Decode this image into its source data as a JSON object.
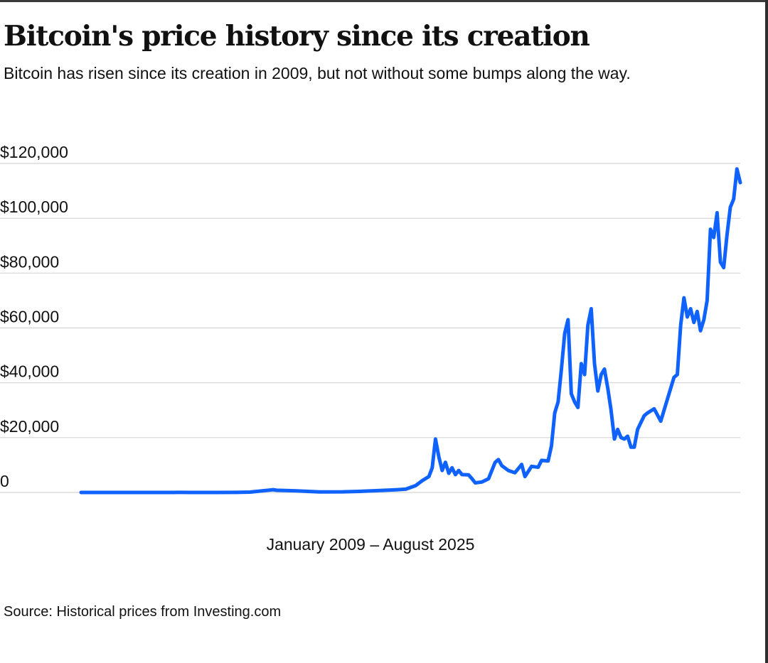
{
  "header": {
    "title": "Bitcoin's price history since its creation",
    "subtitle": "Bitcoin has risen since its creation in 2009, but not without some bumps along the way."
  },
  "footer": {
    "source": "Source: Historical prices from Investing.com"
  },
  "chart_data": {
    "type": "line",
    "xlabel": "January 2009 – August 2025",
    "ylabel": "",
    "ylim": [
      0,
      120000
    ],
    "xlim": [
      "2009-01",
      "2025-08"
    ],
    "y_ticks": [
      {
        "value": 0,
        "label": "0"
      },
      {
        "value": 20000,
        "label": "$20,000"
      },
      {
        "value": 40000,
        "label": "$40,000"
      },
      {
        "value": 60000,
        "label": "$60,000"
      },
      {
        "value": 80000,
        "label": "$80,000"
      },
      {
        "value": 100000,
        "label": "$100,000"
      },
      {
        "value": 120000,
        "label": "$120,000"
      }
    ],
    "grid": true,
    "line_color": "#0f62fe",
    "grid_color": "#d4d4d4",
    "series": [
      {
        "points": [
          [
            "2009-01",
            0
          ],
          [
            "2010-07",
            0
          ],
          [
            "2011-05",
            10
          ],
          [
            "2011-06",
            20
          ],
          [
            "2011-10",
            3
          ],
          [
            "2012-06",
            6
          ],
          [
            "2012-12",
            13
          ],
          [
            "2013-04",
            130
          ],
          [
            "2013-11",
            1000
          ],
          [
            "2013-12",
            800
          ],
          [
            "2014-06",
            600
          ],
          [
            "2015-01",
            220
          ],
          [
            "2015-08",
            230
          ],
          [
            "2016-01",
            400
          ],
          [
            "2016-06",
            650
          ],
          [
            "2016-12",
            950
          ],
          [
            "2017-03",
            1200
          ],
          [
            "2017-06",
            2500
          ],
          [
            "2017-08",
            4300
          ],
          [
            "2017-10",
            5800
          ],
          [
            "2017-11",
            9000
          ],
          [
            "2017-12",
            19500
          ],
          [
            "2018-01",
            13000
          ],
          [
            "2018-02",
            8000
          ],
          [
            "2018-03",
            11000
          ],
          [
            "2018-04",
            7000
          ],
          [
            "2018-05",
            9000
          ],
          [
            "2018-06",
            6500
          ],
          [
            "2018-07",
            8000
          ],
          [
            "2018-08",
            6500
          ],
          [
            "2018-10",
            6400
          ],
          [
            "2018-11",
            5000
          ],
          [
            "2018-12",
            3500
          ],
          [
            "2019-02",
            3800
          ],
          [
            "2019-04",
            5000
          ],
          [
            "2019-06",
            11000
          ],
          [
            "2019-07",
            12000
          ],
          [
            "2019-08",
            9800
          ],
          [
            "2019-10",
            8000
          ],
          [
            "2019-12",
            7200
          ],
          [
            "2020-02",
            10200
          ],
          [
            "2020-03",
            5800
          ],
          [
            "2020-05",
            9500
          ],
          [
            "2020-07",
            9200
          ],
          [
            "2020-08",
            11700
          ],
          [
            "2020-10",
            11500
          ],
          [
            "2020-11",
            17000
          ],
          [
            "2020-12",
            29000
          ],
          [
            "2021-01",
            33000
          ],
          [
            "2021-02",
            45000
          ],
          [
            "2021-03",
            58000
          ],
          [
            "2021-04",
            63000
          ],
          [
            "2021-05",
            36000
          ],
          [
            "2021-06",
            33000
          ],
          [
            "2021-07",
            31000
          ],
          [
            "2021-08",
            47000
          ],
          [
            "2021-09",
            43000
          ],
          [
            "2021-10",
            61000
          ],
          [
            "2021-11",
            67000
          ],
          [
            "2021-12",
            47000
          ],
          [
            "2022-01",
            37000
          ],
          [
            "2022-02",
            43000
          ],
          [
            "2022-03",
            45000
          ],
          [
            "2022-04",
            38000
          ],
          [
            "2022-05",
            30000
          ],
          [
            "2022-06",
            19500
          ],
          [
            "2022-07",
            23000
          ],
          [
            "2022-08",
            20000
          ],
          [
            "2022-09",
            19500
          ],
          [
            "2022-10",
            20500
          ],
          [
            "2022-11",
            16500
          ],
          [
            "2022-12",
            16500
          ],
          [
            "2023-01",
            23000
          ],
          [
            "2023-03",
            28000
          ],
          [
            "2023-04",
            29000
          ],
          [
            "2023-06",
            30500
          ],
          [
            "2023-08",
            26000
          ],
          [
            "2023-10",
            34000
          ],
          [
            "2023-12",
            42000
          ],
          [
            "2024-01",
            43000
          ],
          [
            "2024-02",
            61000
          ],
          [
            "2024-03",
            71000
          ],
          [
            "2024-04",
            64000
          ],
          [
            "2024-05",
            67000
          ],
          [
            "2024-06",
            62000
          ],
          [
            "2024-07",
            66000
          ],
          [
            "2024-08",
            59000
          ],
          [
            "2024-09",
            63000
          ],
          [
            "2024-10",
            70000
          ],
          [
            "2024-11",
            96000
          ],
          [
            "2024-12",
            93000
          ],
          [
            "2025-01",
            102000
          ],
          [
            "2025-02",
            84000
          ],
          [
            "2025-03",
            82000
          ],
          [
            "2025-04",
            94000
          ],
          [
            "2025-05",
            104000
          ],
          [
            "2025-06",
            107000
          ],
          [
            "2025-07",
            118000
          ],
          [
            "2025-08",
            113000
          ]
        ]
      }
    ]
  }
}
